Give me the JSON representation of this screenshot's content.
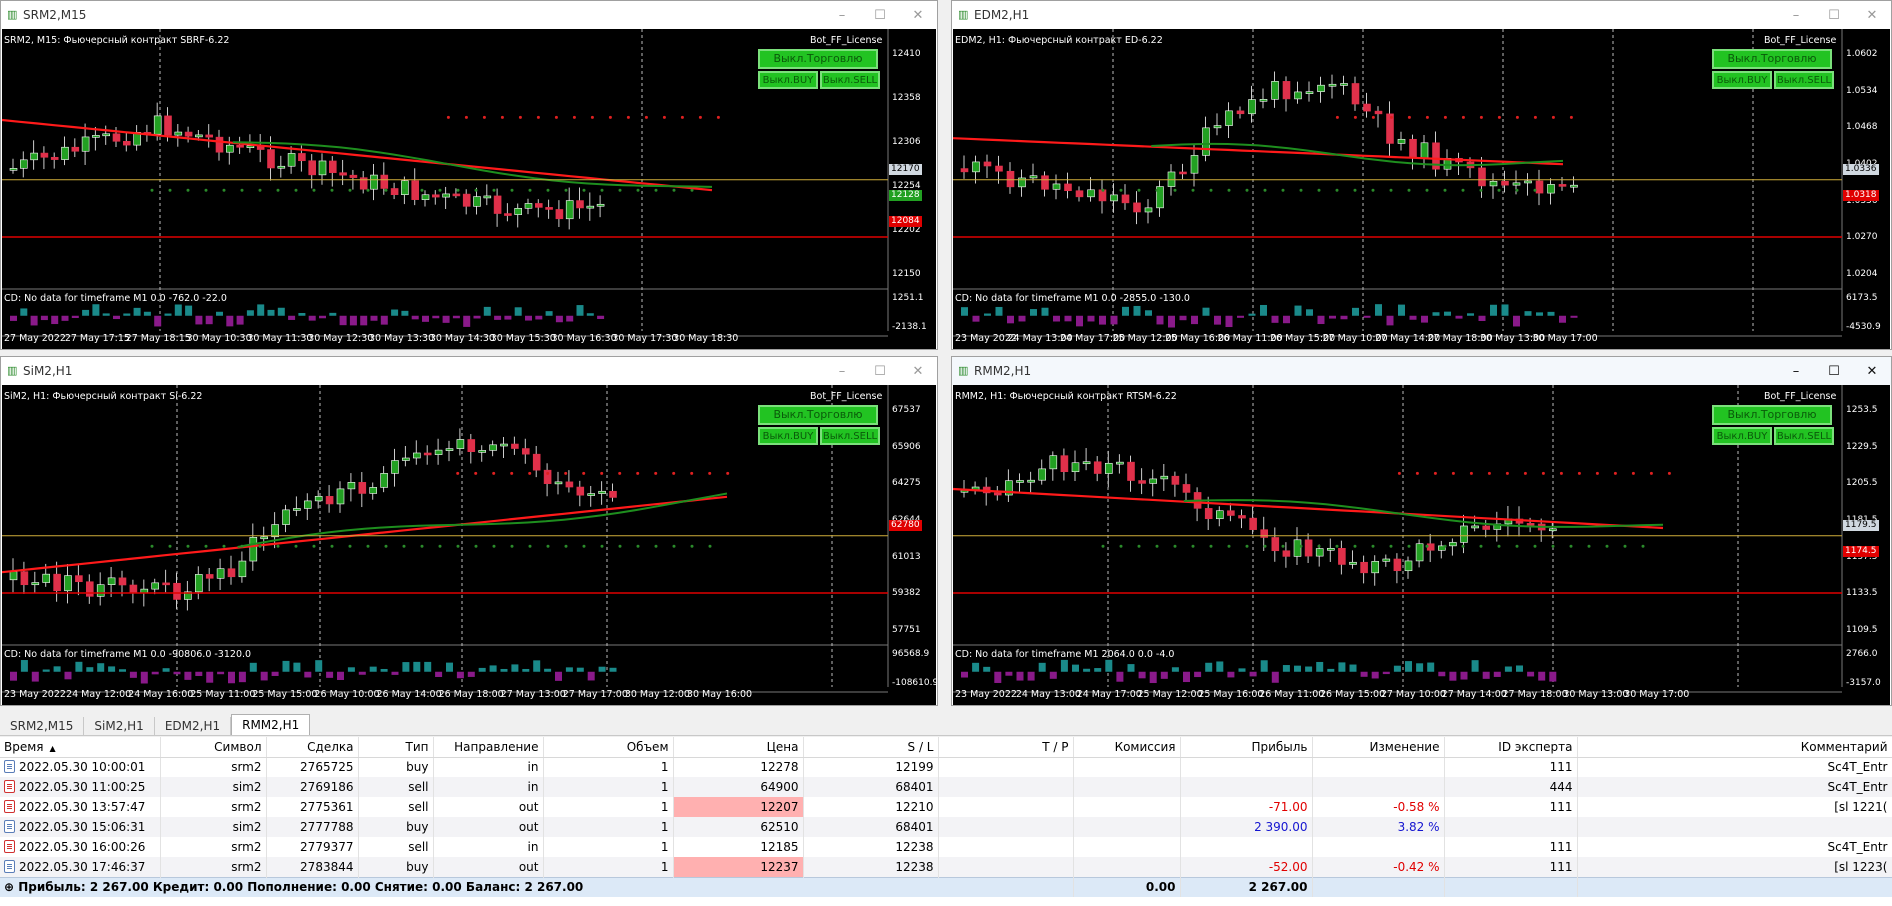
{
  "charts": [
    {
      "id": "srm",
      "window_title": "SRM2,M15",
      "label": "SRM2, M15:  Фьючерсный контракт SBRF-6.22",
      "bot_label": "Bot_FF_License",
      "btn_trade": "Выкл.Торговлю",
      "btn_buy": "Выкл.BUY",
      "btn_sell": "Выкл.SELL",
      "price_scale": [
        "12410",
        "12358",
        "12306",
        "12254",
        "12202",
        "12150"
      ],
      "price_tags": [
        {
          "text": "12170",
          "bg": "#d0d8e0",
          "fg": "#000"
        },
        {
          "text": "12128",
          "bg": "#22a022",
          "fg": "#fff"
        },
        {
          "text": "12084",
          "bg": "#e00000",
          "fg": "#fff"
        }
      ],
      "ind_label": "CD: No data for timeframe M1 0.0 -762.0 -22.0",
      "ind_scale": [
        "1251.1",
        "-2138.1"
      ],
      "time_axis": [
        "27 May 2022",
        "27 May 17:15",
        "27 May 18:15",
        "30 May 10:30",
        "30 May 11:30",
        "30 May 12:30",
        "30 May 13:30",
        "30 May 14:30",
        "30 May 15:30",
        "30 May 16:30",
        "30 May 17:30",
        "30 May 18:30"
      ]
    },
    {
      "id": "edm",
      "window_title": "EDM2,H1",
      "label": "EDM2, H1:  Фьючерсный контракт ED-6.22",
      "bot_label": "Bot_FF_License",
      "btn_trade": "Выкл.Торговлю",
      "btn_buy": "Выкл.BUY",
      "btn_sell": "Выкл.SELL",
      "price_scale": [
        "1.0602",
        "1.0534",
        "1.0468",
        "1.0402",
        "1.0336",
        "1.0270",
        "1.0204"
      ],
      "price_tags": [
        {
          "text": "1.0336",
          "bg": "#d0d8e0",
          "fg": "#000"
        },
        {
          "text": "1.0318",
          "bg": "#e00000",
          "fg": "#fff"
        }
      ],
      "ind_label": "CD: No data for timeframe M1 0.0 -2855.0 -130.0",
      "ind_scale": [
        "6173.5",
        "-4530.9"
      ],
      "time_axis": [
        "23 May 2022",
        "24 May 13:00",
        "24 May 17:00",
        "25 May 12:00",
        "25 May 16:00",
        "26 May 11:00",
        "26 May 15:00",
        "27 May 10:00",
        "27 May 14:00",
        "27 May 18:00",
        "30 May 13:00",
        "30 May 17:00"
      ]
    },
    {
      "id": "sim",
      "window_title": "SiM2,H1",
      "label": "SiM2, H1:  Фьючерсный контракт Si-6.22",
      "bot_label": "Bot_FF_License",
      "btn_trade": "Выкл.Торговлю",
      "btn_buy": "Выкл.BUY",
      "btn_sell": "Выкл.SELL",
      "price_scale": [
        "67537",
        "65906",
        "64275",
        "62644",
        "61013",
        "59382",
        "57751"
      ],
      "price_tags": [
        {
          "text": "62780",
          "bg": "#e00000",
          "fg": "#fff"
        }
      ],
      "ind_label": "CD: No data for timeframe M1 0.0 -90806.0 -3120.0",
      "ind_scale": [
        "96568.9",
        "-108610.9"
      ],
      "time_axis": [
        "23 May 2022",
        "24 May 12:00",
        "24 May 16:00",
        "25 May 11:00",
        "25 May 15:00",
        "26 May 10:00",
        "26 May 14:00",
        "26 May 18:00",
        "27 May 13:00",
        "27 May 17:00",
        "30 May 12:00",
        "30 May 16:00"
      ]
    },
    {
      "id": "rmm",
      "window_title": "RMM2,H1",
      "label": "RMM2, H1:  Фьючерсный контракт RTSM-6.22",
      "bot_label": "Bot_FF_License",
      "btn_trade": "Выкл.Торговлю",
      "btn_buy": "Выкл.BUY",
      "btn_sell": "Выкл.SELL",
      "price_scale": [
        "1253.5",
        "1229.5",
        "1205.5",
        "1181.5",
        "1157.5",
        "1133.5",
        "1109.5"
      ],
      "price_tags": [
        {
          "text": "1179.5",
          "bg": "#d0d8e0",
          "fg": "#000"
        },
        {
          "text": "1174.5",
          "bg": "#e00000",
          "fg": "#fff"
        }
      ],
      "ind_label": "CD: No data for timeframe M1 2064.0 0.0 -4.0",
      "ind_scale": [
        "2766.0",
        "-3157.0"
      ],
      "time_axis": [
        "23 May 2022",
        "24 May 13:00",
        "24 May 17:00",
        "25 May 12:00",
        "25 May 16:00",
        "26 May 11:00",
        "26 May 15:00",
        "27 May 10:00",
        "27 May 14:00",
        "27 May 18:00",
        "30 May 13:00",
        "30 May 17:00"
      ]
    }
  ],
  "tabs": [
    "SRM2,M15",
    "SiM2,H1",
    "EDM2,H1",
    "RMM2,H1"
  ],
  "active_tab": 3,
  "table": {
    "columns": [
      "Время",
      "Символ",
      "Сделка",
      "Тип",
      "Направление",
      "Объем",
      "Цена",
      "S / L",
      "T / P",
      "Комиссия",
      "Прибыль",
      "Изменение",
      "ID эксперта",
      "Комментарий"
    ],
    "rows": [
      {
        "time": "2022.05.30 10:00:01",
        "symbol": "srm2",
        "deal": "2765725",
        "type": "buy",
        "dir": "in",
        "vol": "1",
        "price": "12278",
        "sl": "12199",
        "tp": "",
        "comm": "",
        "profit": "",
        "change": "",
        "expert": "111",
        "comment": "Sc4T_Entr",
        "price_hl": false
      },
      {
        "time": "2022.05.30 11:00:25",
        "symbol": "sim2",
        "deal": "2769186",
        "type": "sell",
        "dir": "in",
        "vol": "1",
        "price": "64900",
        "sl": "68401",
        "tp": "",
        "comm": "",
        "profit": "",
        "change": "",
        "expert": "444",
        "comment": "Sc4T_Entr",
        "price_hl": false
      },
      {
        "time": "2022.05.30 13:57:47",
        "symbol": "srm2",
        "deal": "2775361",
        "type": "sell",
        "dir": "out",
        "vol": "1",
        "price": "12207",
        "sl": "12210",
        "tp": "",
        "comm": "",
        "profit": "-71.00",
        "change": "-0.58 %",
        "expert": "111",
        "comment": "[sl 1221(",
        "price_hl": true
      },
      {
        "time": "2022.05.30 15:06:31",
        "symbol": "sim2",
        "deal": "2777788",
        "type": "buy",
        "dir": "out",
        "vol": "1",
        "price": "62510",
        "sl": "68401",
        "tp": "",
        "comm": "",
        "profit": "2 390.00",
        "change": "3.82 %",
        "expert": "",
        "comment": "",
        "price_hl": false
      },
      {
        "time": "2022.05.30 16:00:26",
        "symbol": "srm2",
        "deal": "2779377",
        "type": "sell",
        "dir": "in",
        "vol": "1",
        "price": "12185",
        "sl": "12238",
        "tp": "",
        "comm": "",
        "profit": "",
        "change": "",
        "expert": "111",
        "comment": "Sc4T_Entr",
        "price_hl": false
      },
      {
        "time": "2022.05.30 17:46:37",
        "symbol": "srm2",
        "deal": "2783844",
        "type": "buy",
        "dir": "out",
        "vol": "1",
        "price": "12237",
        "sl": "12238",
        "tp": "",
        "comm": "",
        "profit": "-52.00",
        "change": "-0.42 %",
        "expert": "111",
        "comment": "[sl 1223(",
        "price_hl": true
      }
    ],
    "summary": {
      "text": "Прибыль: 2 267.00  Кредит: 0.00  Пополнение: 0.00  Снятие: 0.00  Баланс: 2 267.00",
      "comm": "0.00",
      "profit": "2 267.00"
    }
  }
}
